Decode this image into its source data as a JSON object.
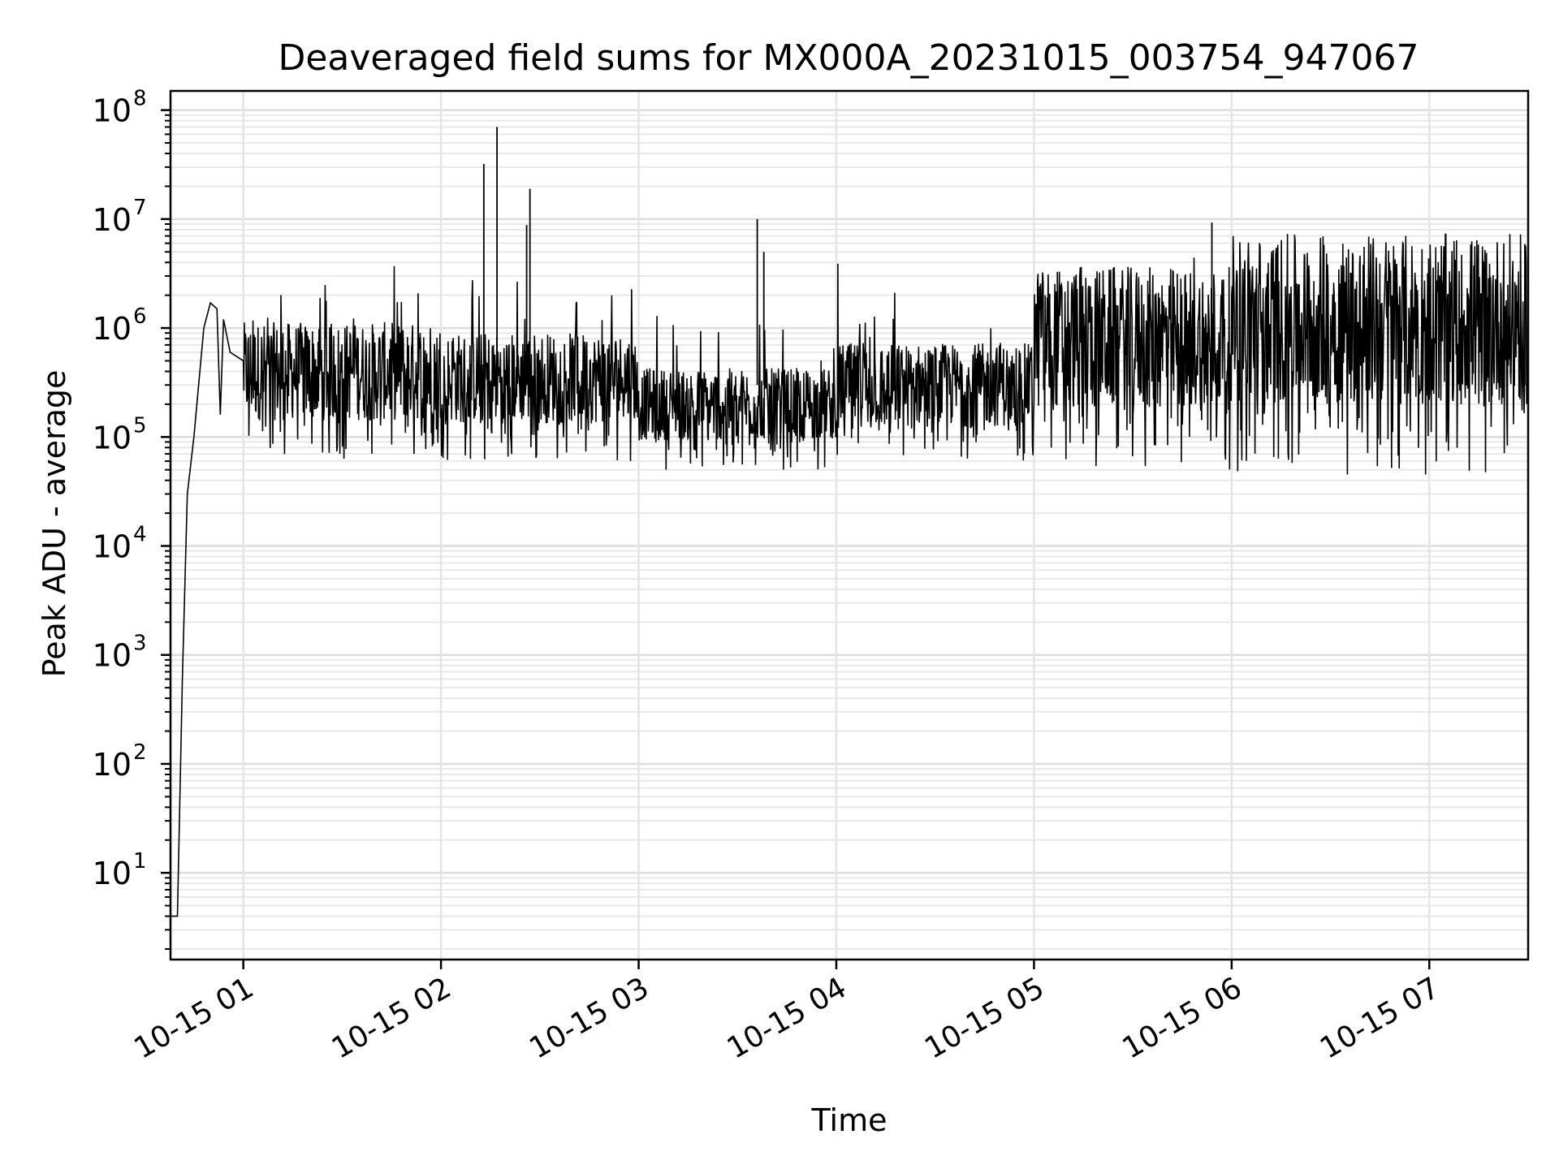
{
  "chart_data": {
    "type": "line",
    "title": "Deaveraged field sums for MX000A_20231015_003754_947067",
    "xlabel": "Time",
    "ylabel": "Peak ADU - average",
    "yscale": "log",
    "ylim": [
      1.6,
      150000000
    ],
    "xlim": [
      "2023-10-15 00:37:54",
      "2023-10-15 07:30:00"
    ],
    "grid": "major and minor",
    "line_color": "#000000",
    "x_ticks": [
      {
        "value": "2023-10-15 01:00",
        "label": "10-15 01"
      },
      {
        "value": "2023-10-15 02:00",
        "label": "10-15 02"
      },
      {
        "value": "2023-10-15 03:00",
        "label": "10-15 03"
      },
      {
        "value": "2023-10-15 04:00",
        "label": "10-15 04"
      },
      {
        "value": "2023-10-15 05:00",
        "label": "10-15 05"
      },
      {
        "value": "2023-10-15 06:00",
        "label": "10-15 06"
      },
      {
        "value": "2023-10-15 07:00",
        "label": "10-15 07"
      }
    ],
    "y_ticks": [
      {
        "value": 10,
        "base": "10",
        "exp": "1"
      },
      {
        "value": 100,
        "base": "10",
        "exp": "2"
      },
      {
        "value": 1000,
        "base": "10",
        "exp": "3"
      },
      {
        "value": 10000,
        "base": "10",
        "exp": "4"
      },
      {
        "value": 100000,
        "base": "10",
        "exp": "5"
      },
      {
        "value": 1000000,
        "base": "10",
        "exp": "6"
      },
      {
        "value": 10000000,
        "base": "10",
        "exp": "7"
      },
      {
        "value": 100000000,
        "base": "10",
        "exp": "8"
      }
    ],
    "series": [
      {
        "values": [
          [
            "2023-10-15 00:37:54",
            4
          ],
          [
            "2023-10-15 00:40:00",
            4
          ],
          [
            "2023-10-15 00:41:30",
            600
          ],
          [
            "2023-10-15 00:43:00",
            30000
          ],
          [
            "2023-10-15 00:45:00",
            100000
          ],
          [
            "2023-10-15 00:48:00",
            1000000
          ],
          [
            "2023-10-15 00:50:00",
            1700000
          ],
          [
            "2023-10-15 00:52:00",
            1500000
          ],
          [
            "2023-10-15 00:53:00",
            160000
          ],
          [
            "2023-10-15 00:54:00",
            1200000
          ],
          [
            "2023-10-15 00:56:00",
            600000
          ],
          [
            "2023-10-15 01:00:00",
            500000
          ]
        ],
        "regimes": [
          {
            "from": "2023-10-15 01:00",
            "to": "2023-10-15 02:00",
            "low": 60000,
            "mid": 400000,
            "high": 4000000
          },
          {
            "from": "2023-10-15 02:00",
            "to": "2023-10-15 03:00",
            "low": 60000,
            "mid": 350000,
            "high": 3000000
          },
          {
            "from": "2023-10-15 03:00",
            "to": "2023-10-15 04:00",
            "low": 50000,
            "mid": 200000,
            "high": 1500000
          },
          {
            "from": "2023-10-15 04:00",
            "to": "2023-10-15 05:00",
            "low": 60000,
            "mid": 300000,
            "high": 4000000
          },
          {
            "from": "2023-10-15 05:00",
            "to": "2023-10-15 06:00",
            "low": 50000,
            "mid": 800000,
            "high": 5000000
          },
          {
            "from": "2023-10-15 06:00",
            "to": "2023-10-15 07:30",
            "low": 45000,
            "mid": 1200000,
            "high": 5000000
          }
        ],
        "spikes": [
          [
            "2023-10-15 02:13:00",
            32000000
          ],
          [
            "2023-10-15 02:17:00",
            70000000
          ],
          [
            "2023-10-15 02:27:00",
            19000000
          ],
          [
            "2023-10-15 02:26:00",
            8800000
          ],
          [
            "2023-10-15 03:36:00",
            10000000
          ],
          [
            "2023-10-15 03:38:00",
            5000000
          ],
          [
            "2023-10-15 05:54:00",
            9300000
          ],
          [
            "2023-10-15 06:28:00",
            5800000
          ],
          [
            "2023-10-15 07:29:00",
            5900000
          ]
        ]
      }
    ]
  }
}
